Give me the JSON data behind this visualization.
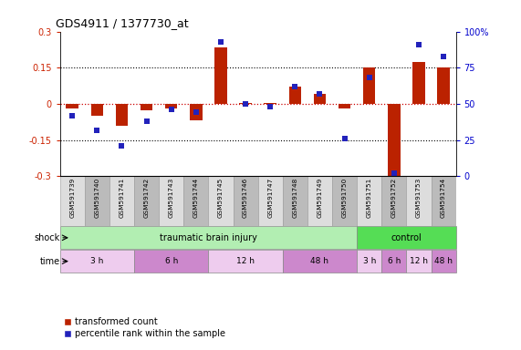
{
  "title": "GDS4911 / 1377730_at",
  "samples": [
    "GSM591739",
    "GSM591740",
    "GSM591741",
    "GSM591742",
    "GSM591743",
    "GSM591744",
    "GSM591745",
    "GSM591746",
    "GSM591747",
    "GSM591748",
    "GSM591749",
    "GSM591750",
    "GSM591751",
    "GSM591752",
    "GSM591753",
    "GSM591754"
  ],
  "red_values": [
    -0.02,
    -0.05,
    -0.09,
    -0.025,
    -0.02,
    -0.07,
    0.235,
    0.005,
    0.002,
    0.07,
    0.04,
    -0.02,
    0.15,
    -0.3,
    0.175,
    0.15
  ],
  "blue_values": [
    42,
    32,
    21,
    38,
    46,
    44,
    93,
    50,
    48,
    62,
    57,
    26,
    68,
    2,
    91,
    83
  ],
  "ylim_left": [
    -0.3,
    0.3
  ],
  "ylim_right": [
    0,
    100
  ],
  "yticks_left": [
    -0.3,
    -0.15,
    0.0,
    0.15,
    0.3
  ],
  "yticks_left_labels": [
    "-0.3",
    "-0.15",
    "0",
    "0.15",
    "0.3"
  ],
  "yticks_right": [
    0,
    25,
    50,
    75,
    100
  ],
  "yticks_right_labels": [
    "0",
    "25",
    "50",
    "75",
    "100%"
  ],
  "hlines": [
    0.15,
    0.0,
    -0.15
  ],
  "shock_label": "shock",
  "time_label": "time",
  "tbi_color": "#B2EEB2",
  "control_color": "#55DD55",
  "time_colors": [
    "#EECCEE",
    "#CC88CC",
    "#EECCEE",
    "#CC88CC",
    "#EECCEE",
    "#CC88CC",
    "#EECCEE",
    "#CC88CC"
  ],
  "time_groups": [
    {
      "label": "3 h",
      "start": 0,
      "end": 3
    },
    {
      "label": "6 h",
      "start": 3,
      "end": 6
    },
    {
      "label": "12 h",
      "start": 6,
      "end": 9
    },
    {
      "label": "48 h",
      "start": 9,
      "end": 12
    },
    {
      "label": "3 h",
      "start": 12,
      "end": 13
    },
    {
      "label": "6 h",
      "start": 13,
      "end": 14
    },
    {
      "label": "12 h",
      "start": 14,
      "end": 15
    },
    {
      "label": "48 h",
      "start": 15,
      "end": 16
    }
  ],
  "red_color": "#BB2200",
  "blue_color": "#2222BB",
  "bar_width": 0.5,
  "label_transformed": "transformed count",
  "label_percentile": "percentile rank within the sample",
  "cell_color_even": "#DDDDDD",
  "cell_color_odd": "#BBBBBB",
  "row_bg": "#CCCCCC"
}
